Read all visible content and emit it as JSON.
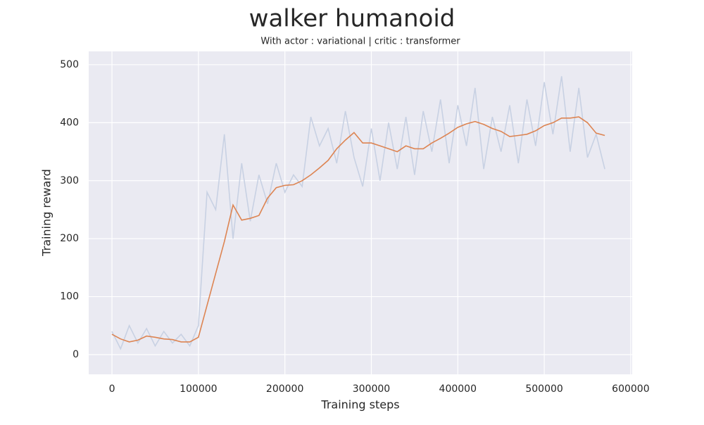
{
  "chart_data": {
    "type": "line",
    "title": "walker humanoid",
    "subtitle": "With actor : variational | critic : transformer",
    "xlabel": "Training steps",
    "ylabel": "Training reward",
    "x": [
      0,
      10000,
      20000,
      30000,
      40000,
      50000,
      60000,
      70000,
      80000,
      90000,
      100000,
      110000,
      120000,
      130000,
      140000,
      150000,
      160000,
      170000,
      180000,
      190000,
      200000,
      210000,
      220000,
      230000,
      240000,
      250000,
      260000,
      270000,
      280000,
      290000,
      300000,
      310000,
      320000,
      330000,
      340000,
      350000,
      360000,
      370000,
      380000,
      390000,
      400000,
      410000,
      420000,
      430000,
      440000,
      450000,
      460000,
      470000,
      480000,
      490000,
      500000,
      510000,
      520000,
      530000,
      540000,
      550000,
      560000,
      570000
    ],
    "series": [
      {
        "color": "#c8d1e3",
        "values": [
          40,
          10,
          50,
          20,
          45,
          15,
          40,
          20,
          35,
          15,
          50,
          280,
          250,
          380,
          200,
          330,
          230,
          310,
          260,
          330,
          280,
          310,
          290,
          410,
          360,
          390,
          330,
          420,
          340,
          290,
          390,
          300,
          400,
          320,
          410,
          310,
          420,
          350,
          440,
          330,
          430,
          360,
          460,
          320,
          410,
          350,
          430,
          330,
          440,
          360,
          470,
          380,
          480,
          350,
          460,
          340,
          380,
          320
        ]
      },
      {
        "color": "#dd8452",
        "values": [
          35,
          27,
          22,
          25,
          32,
          30,
          27,
          26,
          22,
          22,
          30,
          85,
          140,
          195,
          258,
          232,
          235,
          240,
          270,
          288,
          292,
          293,
          300,
          310,
          322,
          335,
          355,
          370,
          383,
          365,
          365,
          360,
          355,
          350,
          360,
          355,
          355,
          365,
          373,
          382,
          392,
          398,
          402,
          397,
          390,
          385,
          376,
          378,
          380,
          386,
          395,
          400,
          408,
          408,
          410,
          400,
          382,
          378
        ]
      }
    ],
    "xlim": [
      -26900,
      601700
    ],
    "ylim": [
      -34,
      523
    ],
    "xticks": [
      0,
      100000,
      200000,
      300000,
      400000,
      500000,
      600000
    ],
    "yticks": [
      0,
      100,
      200,
      300,
      400,
      500
    ],
    "grid": true
  }
}
